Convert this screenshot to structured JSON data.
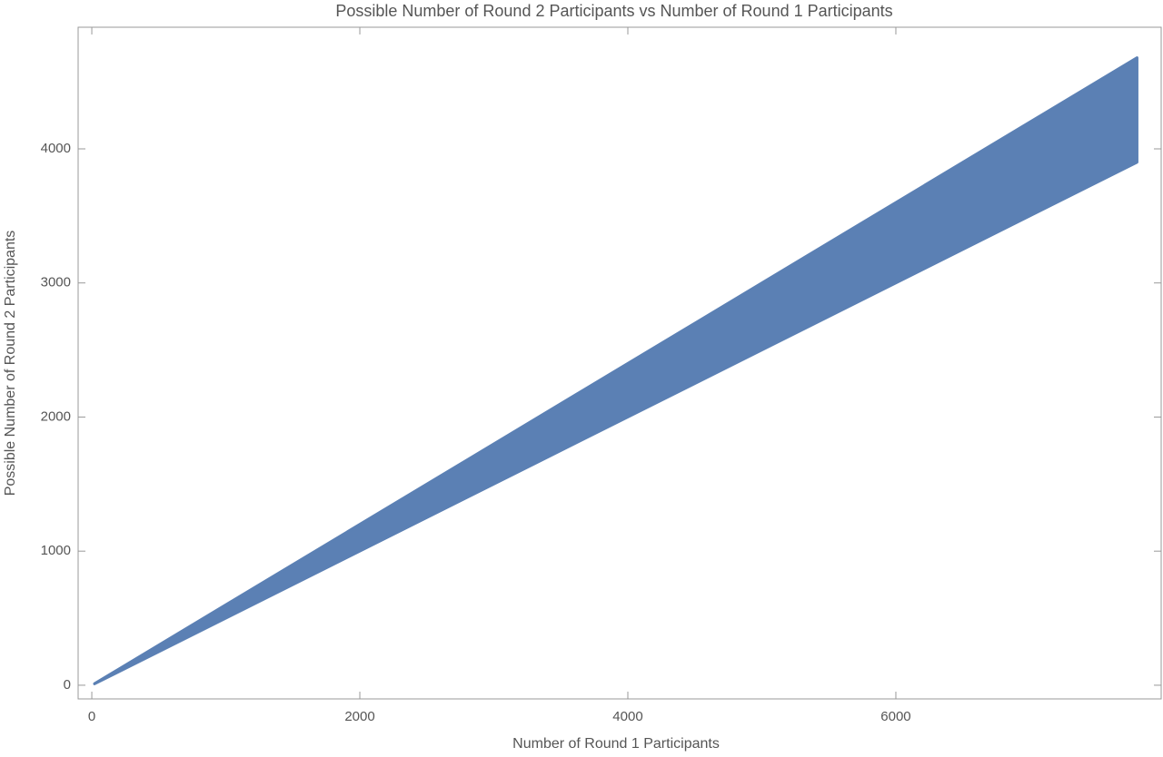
{
  "chart_data": {
    "type": "band",
    "title": "Possible Number of Round 2 Participants vs Number of Round 1 Participants",
    "xlabel": "Number of Round 1 Participants",
    "ylabel": "Possible Number of Round 2 Participants",
    "x": [
      20,
      7800
    ],
    "series": [
      {
        "name": "lower",
        "color": "#5b80b4",
        "values": [
          10,
          3900
        ]
      },
      {
        "name": "upper",
        "color": "#5b80b4",
        "values": [
          12,
          4680
        ]
      }
    ],
    "xlim": [
      -102,
      7980
    ],
    "ylim": [
      -102,
      4907
    ],
    "xticks": [
      0,
      2000,
      4000,
      6000
    ],
    "yticks": [
      0,
      1000,
      2000,
      3000,
      4000
    ],
    "grid": false
  }
}
